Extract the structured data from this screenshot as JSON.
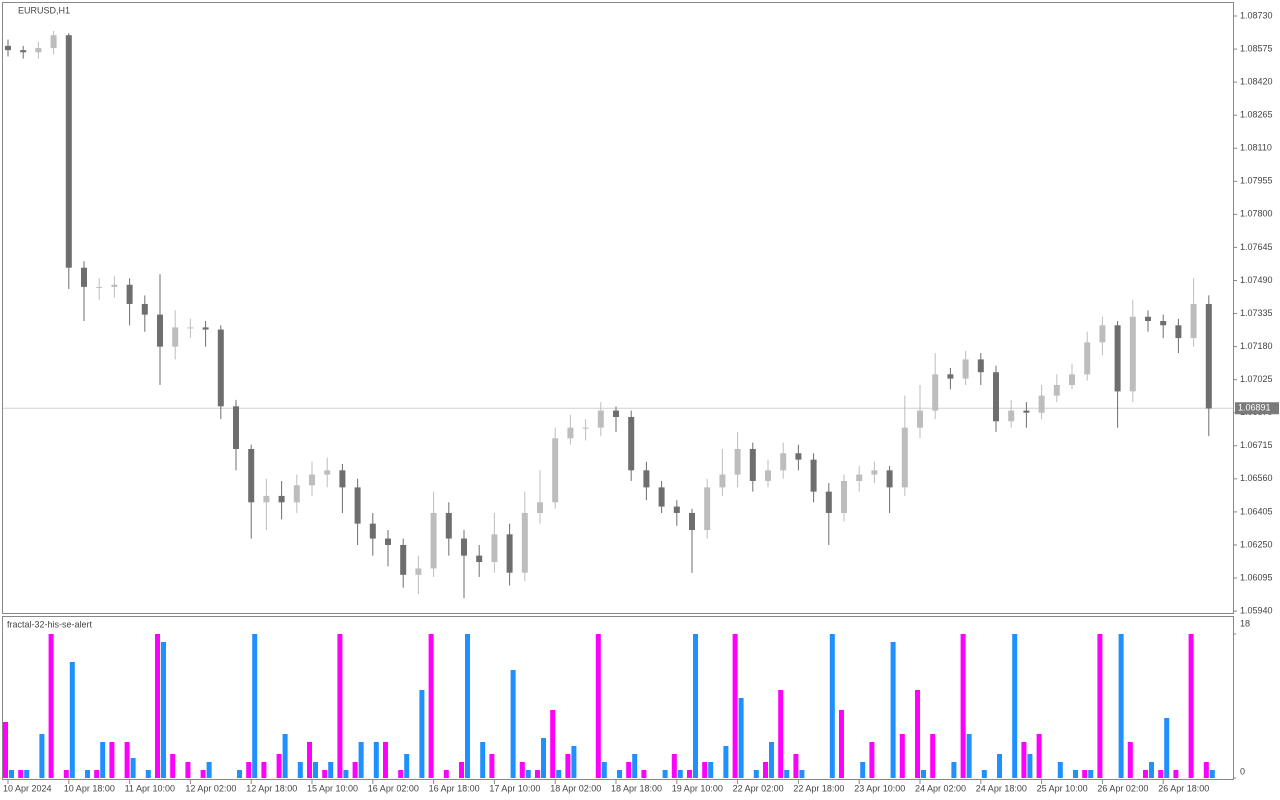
{
  "chart_data": [
    {
      "type": "candlestick",
      "title": "EURUSD,H1",
      "categories": [
        "10 Apr 2024",
        null,
        null,
        null,
        "10 Apr 18:00",
        null,
        null,
        null,
        "11 Apr 10:00",
        null,
        null,
        null,
        "12 Apr 02:00",
        null,
        null,
        null,
        "12 Apr 18:00",
        null,
        null,
        null,
        "15 Apr 10:00",
        null,
        null,
        null,
        "16 Apr 02:00",
        null,
        null,
        null,
        "16 Apr 18:00",
        null,
        null,
        null,
        "17 Apr 10:00",
        null,
        null,
        null,
        "18 Apr 02:00",
        null,
        null,
        null,
        "18 Apr 18:00",
        null,
        null,
        null,
        "19 Apr 10:00",
        null,
        null,
        null,
        "22 Apr 02:00",
        null,
        null,
        null,
        "22 Apr 18:00",
        null,
        null,
        null,
        "23 Apr 10:00",
        null,
        null,
        null,
        "24 Apr 02:00",
        null,
        null,
        null,
        "24 Apr 18:00",
        null,
        null,
        null,
        "25 Apr 10:00",
        null,
        null,
        null,
        "26 Apr 02:00",
        null,
        null,
        null,
        "26 Apr 18:00",
        null,
        null,
        null
      ],
      "open": [
        1.0859,
        1.0857,
        1.0856,
        1.0858,
        1.0864,
        1.0755,
        1.0746,
        1.0746,
        1.0747,
        1.0738,
        1.0733,
        1.0718,
        1.0727,
        1.0727,
        1.0726,
        1.069,
        1.067,
        1.0645,
        1.0648,
        1.0645,
        1.0653,
        1.0658,
        1.066,
        1.0652,
        1.0635,
        1.0628,
        1.0625,
        1.0611,
        1.0614,
        1.064,
        1.0628,
        1.062,
        1.0617,
        1.063,
        1.0612,
        1.064,
        1.0645,
        1.0675,
        1.068,
        1.068,
        1.0688,
        1.0685,
        1.066,
        1.0652,
        1.0643,
        1.064,
        1.0632,
        1.0652,
        1.0658,
        1.067,
        1.0655,
        1.066,
        1.0668,
        1.0665,
        1.065,
        1.064,
        1.0655,
        1.0658,
        1.066,
        1.0652,
        1.068,
        1.0688,
        1.0705,
        1.0703,
        1.0712,
        1.0706,
        1.0683,
        1.0688,
        1.0687,
        1.0695,
        1.07,
        1.0705,
        1.072,
        1.0728,
        1.0697,
        1.0732,
        1.073,
        1.0728,
        1.0722,
        1.0738
      ],
      "high": [
        1.0862,
        1.0859,
        1.0861,
        1.0866,
        1.0865,
        1.0758,
        1.075,
        1.0751,
        1.075,
        1.0742,
        1.0752,
        1.0735,
        1.0731,
        1.073,
        1.0728,
        1.0693,
        1.0672,
        1.0656,
        1.0655,
        1.0658,
        1.0664,
        1.0666,
        1.0663,
        1.0656,
        1.064,
        1.0632,
        1.0628,
        1.062,
        1.065,
        1.0645,
        1.0632,
        1.0625,
        1.064,
        1.0635,
        1.065,
        1.066,
        1.068,
        1.0686,
        1.0684,
        1.0692,
        1.069,
        1.0688,
        1.0664,
        1.0655,
        1.0646,
        1.0642,
        1.0656,
        1.067,
        1.0678,
        1.0673,
        1.0665,
        1.0673,
        1.0672,
        1.0668,
        1.0654,
        1.0658,
        1.0662,
        1.0664,
        1.0662,
        1.0695,
        1.07,
        1.0715,
        1.0708,
        1.0716,
        1.0715,
        1.0709,
        1.0693,
        1.0692,
        1.07,
        1.0705,
        1.071,
        1.0725,
        1.0732,
        1.073,
        1.074,
        1.0735,
        1.0733,
        1.0731,
        1.075,
        1.0742
      ],
      "low": [
        1.0854,
        1.0853,
        1.0853,
        1.0855,
        1.0745,
        1.073,
        1.074,
        1.0741,
        1.0728,
        1.0725,
        1.07,
        1.0712,
        1.0722,
        1.0718,
        1.0684,
        1.066,
        1.0628,
        1.0632,
        1.0637,
        1.064,
        1.0648,
        1.0652,
        1.064,
        1.0625,
        1.062,
        1.0615,
        1.0605,
        1.0602,
        1.061,
        1.062,
        1.06,
        1.061,
        1.0612,
        1.0606,
        1.0608,
        1.0635,
        1.0642,
        1.0672,
        1.0674,
        1.0676,
        1.0678,
        1.0655,
        1.0646,
        1.064,
        1.0634,
        1.0612,
        1.0628,
        1.0648,
        1.0652,
        1.065,
        1.0652,
        1.0656,
        1.066,
        1.0645,
        1.0625,
        1.0636,
        1.065,
        1.0654,
        1.064,
        1.0648,
        1.0675,
        1.0684,
        1.0698,
        1.07,
        1.07,
        1.0678,
        1.068,
        1.068,
        1.0684,
        1.0692,
        1.0698,
        1.0702,
        1.0714,
        1.068,
        1.0692,
        1.0725,
        1.0722,
        1.0715,
        1.0718,
        1.0676
      ],
      "close": [
        1.0857,
        1.0856,
        1.0858,
        1.0864,
        1.0755,
        1.0746,
        1.0746,
        1.0747,
        1.0738,
        1.0733,
        1.0718,
        1.0727,
        1.0727,
        1.0726,
        1.069,
        1.067,
        1.0645,
        1.0648,
        1.0645,
        1.0653,
        1.0658,
        1.066,
        1.0652,
        1.0635,
        1.0628,
        1.0625,
        1.0611,
        1.0614,
        1.064,
        1.0628,
        1.062,
        1.0617,
        1.063,
        1.0612,
        1.064,
        1.0645,
        1.0675,
        1.068,
        1.068,
        1.0688,
        1.0685,
        1.066,
        1.0652,
        1.0643,
        1.064,
        1.0632,
        1.0652,
        1.0658,
        1.067,
        1.0655,
        1.066,
        1.0668,
        1.0665,
        1.065,
        1.064,
        1.0655,
        1.0658,
        1.066,
        1.0652,
        1.068,
        1.0688,
        1.0705,
        1.0703,
        1.0712,
        1.0706,
        1.0683,
        1.0688,
        1.0687,
        1.0695,
        1.07,
        1.0705,
        1.072,
        1.0728,
        1.0697,
        1.0732,
        1.073,
        1.0728,
        1.0722,
        1.0738,
        1.0689
      ],
      "up_color": "#bdbdbd",
      "down_color": "#6e6e6e",
      "ylim": [
        1.05931,
        1.08791
      ],
      "yticks": [
        {
          "value": 1.0873,
          "label": "1.08730"
        },
        {
          "value": 1.08575,
          "label": "1.08575"
        },
        {
          "value": 1.0842,
          "label": "1.08420"
        },
        {
          "value": 1.08265,
          "label": "1.08265"
        },
        {
          "value": 1.0811,
          "label": "1.08110"
        },
        {
          "value": 1.07955,
          "label": "1.07955"
        },
        {
          "value": 1.078,
          "label": "1.07800"
        },
        {
          "value": 1.07645,
          "label": "1.07645"
        },
        {
          "value": 1.0749,
          "label": "1.07490"
        },
        {
          "value": 1.07335,
          "label": "1.07335"
        },
        {
          "value": 1.0718,
          "label": "1.07180"
        },
        {
          "value": 1.07025,
          "label": "1.07025"
        },
        {
          "value": 1.0687,
          "label": "1.06870"
        },
        {
          "value": 1.06715,
          "label": "1.06715"
        },
        {
          "value": 1.0656,
          "label": "1.06560"
        },
        {
          "value": 1.06405,
          "label": "1.06405"
        },
        {
          "value": 1.0625,
          "label": "1.06250"
        },
        {
          "value": 1.06095,
          "label": "1.06095"
        },
        {
          "value": 1.0594,
          "label": "1.05940"
        }
      ],
      "last_price": {
        "value": 1.06891,
        "label": "1.06891"
      }
    },
    {
      "type": "histogram-bars",
      "title": "fractal-32-his-se-alert",
      "series": [
        {
          "color": "#ff00ff",
          "values": [
            7,
            1,
            0,
            18,
            1,
            0,
            1,
            4.5,
            4.5,
            0,
            18,
            3,
            2,
            1,
            0,
            0,
            2,
            2,
            3,
            0,
            4.5,
            1,
            18,
            2,
            0,
            4.5,
            1,
            0,
            18,
            1,
            2,
            0,
            3,
            0,
            2,
            1,
            8.5,
            3,
            0,
            18,
            0,
            2,
            1,
            0,
            3,
            1,
            2,
            0,
            18,
            0,
            2,
            11,
            3,
            0,
            0,
            8.5,
            0,
            4.5,
            0,
            5.5,
            11,
            5.5,
            0,
            18,
            0,
            0,
            0,
            4.5,
            5.5,
            0,
            0,
            1,
            18,
            0,
            4.5,
            1,
            1,
            1,
            18,
            2
          ]
        },
        {
          "color": "#1e90ff",
          "values": [
            1,
            1,
            5.5,
            0,
            14.5,
            1,
            4.5,
            0,
            2.5,
            1,
            17,
            0,
            0,
            2,
            0,
            1,
            18,
            0,
            5.5,
            2,
            2,
            2,
            1,
            4.5,
            4.5,
            0,
            3,
            11,
            0,
            0,
            18,
            4.5,
            0,
            13.5,
            1,
            5,
            1,
            4,
            0,
            2,
            1,
            3,
            0,
            1,
            1,
            18,
            2,
            4,
            10,
            1,
            4.5,
            1,
            1,
            0,
            18,
            0,
            2,
            0,
            17,
            0,
            1,
            0,
            2,
            5.5,
            1,
            3,
            18,
            3,
            0,
            2,
            1,
            1,
            0,
            18,
            0,
            2,
            7.5,
            0,
            0,
            1
          ]
        }
      ],
      "ylim": [
        0,
        18
      ],
      "yticks": [
        0,
        18
      ]
    }
  ]
}
